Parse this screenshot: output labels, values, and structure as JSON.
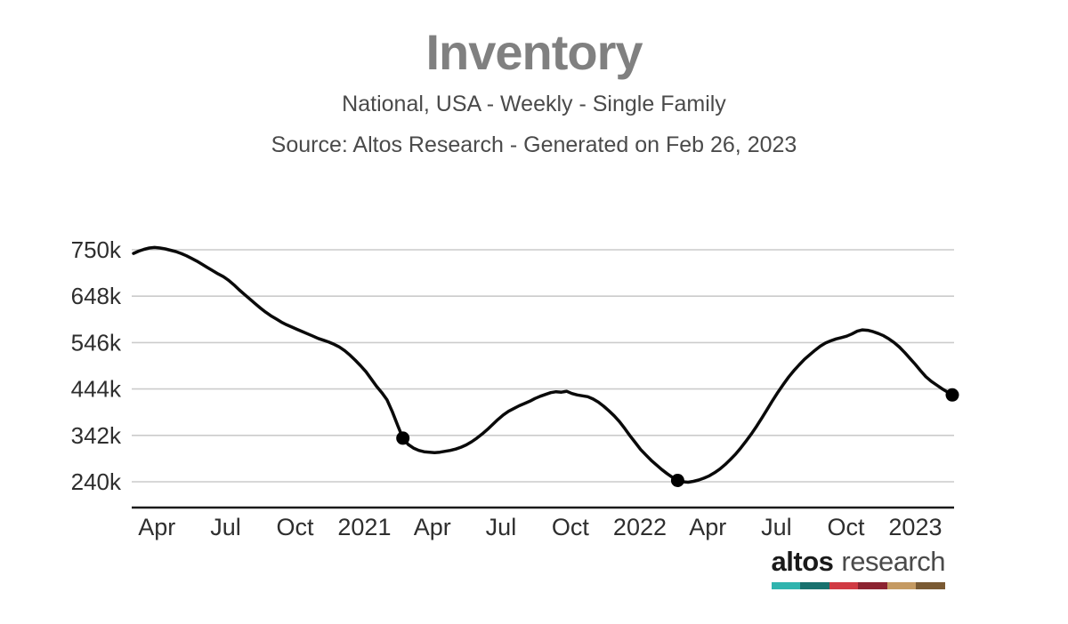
{
  "header": {
    "title": "Inventory",
    "subtitle": "National, USA - Weekly - Single Family",
    "source_note": "Source: Altos Research - Generated on Feb 26, 2023"
  },
  "logo": {
    "brand_primary": "altos",
    "brand_secondary": "research",
    "stripe_colors": [
      "#2fb4ae",
      "#19716e",
      "#d03a43",
      "#8c2330",
      "#c59a62",
      "#7a5a33"
    ]
  },
  "chart_data": {
    "type": "line",
    "title": "Inventory",
    "subtitle": "National, USA - Weekly - Single Family",
    "source_note": "Source: Altos Research - Generated on Feb 26, 2023",
    "x_start_date": "2020-03-01",
    "x_interval": "weekly",
    "values_unit": "thousands of single-family listings",
    "values": [
      742,
      747,
      751,
      754,
      755,
      754,
      752,
      749,
      746,
      742,
      737,
      731,
      725,
      718,
      711,
      704,
      697,
      691,
      683,
      673,
      662,
      652,
      642,
      632,
      622,
      613,
      605,
      598,
      591,
      585,
      580,
      575,
      570,
      565,
      560,
      555,
      551,
      547,
      542,
      536,
      528,
      518,
      507,
      495,
      482,
      466,
      450,
      436,
      420,
      394,
      364,
      336,
      322,
      314,
      309,
      306,
      305,
      304,
      305,
      307,
      309,
      312,
      316,
      321,
      328,
      336,
      345,
      355,
      366,
      377,
      387,
      395,
      401,
      407,
      412,
      417,
      423,
      428,
      432,
      436,
      438,
      437,
      439,
      434,
      431,
      429,
      427,
      422,
      415,
      406,
      396,
      385,
      372,
      357,
      341,
      326,
      311,
      299,
      287,
      277,
      267,
      258,
      250,
      243,
      240,
      239,
      241,
      244,
      248,
      253,
      260,
      268,
      278,
      289,
      301,
      315,
      330,
      346,
      363,
      381,
      400,
      419,
      437,
      454,
      470,
      484,
      497,
      509,
      519,
      529,
      538,
      545,
      550,
      554,
      557,
      560,
      565,
      571,
      574,
      573,
      570,
      566,
      561,
      554,
      546,
      536,
      524,
      511,
      498,
      484,
      471,
      461,
      453,
      445,
      438,
      431
    ],
    "marker_indices": [
      51,
      103,
      155
    ],
    "marker_note": "black dots at latest point and same week 1 and 2 years prior",
    "yticks": [
      {
        "value": 750,
        "label": "750k"
      },
      {
        "value": 648,
        "label": "648k"
      },
      {
        "value": 546,
        "label": "546k"
      },
      {
        "value": 444,
        "label": "444k"
      },
      {
        "value": 342,
        "label": "342k"
      },
      {
        "value": 240,
        "label": "240k"
      }
    ],
    "xticks": [
      {
        "week": 4.43,
        "label": "Apr"
      },
      {
        "week": 17.43,
        "label": "Jul"
      },
      {
        "week": 30.57,
        "label": "Oct"
      },
      {
        "week": 43.71,
        "label": "2021"
      },
      {
        "week": 56.57,
        "label": "Apr"
      },
      {
        "week": 69.57,
        "label": "Jul"
      },
      {
        "week": 82.71,
        "label": "Oct"
      },
      {
        "week": 95.86,
        "label": "2022"
      },
      {
        "week": 108.71,
        "label": "Apr"
      },
      {
        "week": 121.71,
        "label": "Jul"
      },
      {
        "week": 134.86,
        "label": "Oct"
      },
      {
        "week": 148.0,
        "label": "2023"
      }
    ],
    "ylim_gridlines": [
      240,
      750
    ],
    "grid": true,
    "legend": false,
    "line_color": "#0a0a0a",
    "grid_color": "#cbcbcb",
    "axis_color": "#1a1a1a",
    "tick_label_color": "#2e2e2e"
  }
}
